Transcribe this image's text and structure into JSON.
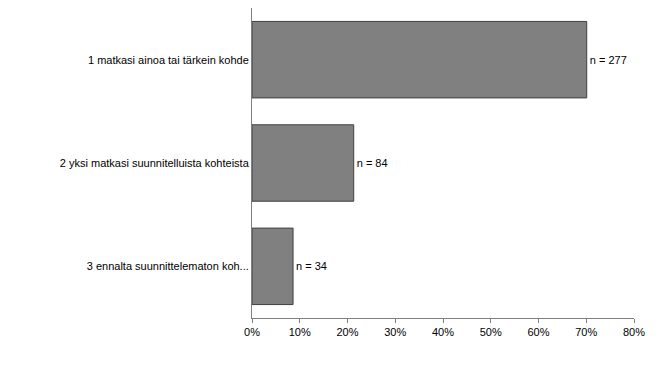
{
  "chart_data": {
    "type": "bar",
    "orientation": "horizontal",
    "categories": [
      "1 matkasi ainoa tai tärkein kohde",
      "2 yksi matkasi suunnitelluista kohteista",
      "3 ennalta suunnittelematon koh..."
    ],
    "values": [
      70.1,
      21.3,
      8.6
    ],
    "annotations": [
      "n = 277",
      "n = 84",
      "n = 34"
    ],
    "color": "#808080",
    "xlim": [
      0,
      80
    ],
    "xticks": [
      {
        "value": 0,
        "label": "0%"
      },
      {
        "value": 10,
        "label": "10%"
      },
      {
        "value": 20,
        "label": "20%"
      },
      {
        "value": 30,
        "label": "30%"
      },
      {
        "value": 40,
        "label": "40%"
      },
      {
        "value": 50,
        "label": "50%"
      },
      {
        "value": 60,
        "label": "60%"
      },
      {
        "value": 70,
        "label": "70%"
      },
      {
        "value": 80,
        "label": "80%"
      }
    ],
    "grid": false
  }
}
